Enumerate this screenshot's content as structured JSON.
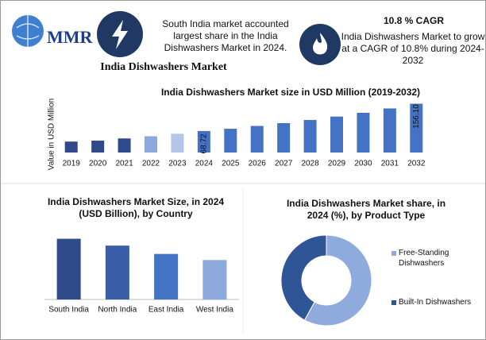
{
  "header": {
    "logo": "MMR",
    "title": "India Dishwashers Market",
    "stat1": "South India market accounted largest share in the India Dishwashers Market in 2024.",
    "stat2_title": "10.8 % CAGR",
    "stat2": "India Dishwashers Market to grow at a CAGR of 10.8% during 2024-2032"
  },
  "chart_data": [
    {
      "type": "bar",
      "title": "India Dishwashers Market size in USD Million (2019-2032)",
      "y_label": "Value in USD Million",
      "categories": [
        "2019",
        "2020",
        "2021",
        "2022",
        "2023",
        "2024",
        "2025",
        "2026",
        "2027",
        "2028",
        "2029",
        "2030",
        "2031",
        "2032"
      ],
      "values": [
        35,
        38,
        45,
        52,
        60,
        68.72,
        76,
        85,
        94,
        104,
        115,
        127,
        141,
        156.1
      ],
      "value_labels": [
        null,
        null,
        null,
        null,
        null,
        "68.72",
        null,
        null,
        null,
        null,
        null,
        null,
        null,
        "156.10"
      ],
      "colors": [
        "#2e4a8c",
        "#2e4a8c",
        "#2e4a8c",
        "#8ea9db",
        "#b4c6e7",
        "#4472c4",
        "#4472c4",
        "#4472c4",
        "#4472c4",
        "#4472c4",
        "#4472c4",
        "#4472c4",
        "#4472c4",
        "#4472c4"
      ],
      "ylim": [
        0,
        160
      ]
    },
    {
      "type": "bar",
      "title": "India Dishwashers Market Size, in 2024 (USD Billion), by Country",
      "categories": [
        "South India",
        "North India",
        "East India",
        "West India"
      ],
      "values": [
        0.8,
        0.71,
        0.6,
        0.52
      ],
      "colors": [
        "#2f4b8a",
        "#3a5ea8",
        "#4472c4",
        "#8ea9db"
      ],
      "ylim": [
        0,
        0.9
      ]
    },
    {
      "type": "pie",
      "title": "India Dishwashers Market share, in 2024 (%), by Product Type",
      "categories": [
        "Free-Standing Dishwashers",
        "Built-In Dishwashers"
      ],
      "values": [
        58,
        42
      ],
      "colors": [
        "#8faadc",
        "#2f5597"
      ]
    }
  ]
}
